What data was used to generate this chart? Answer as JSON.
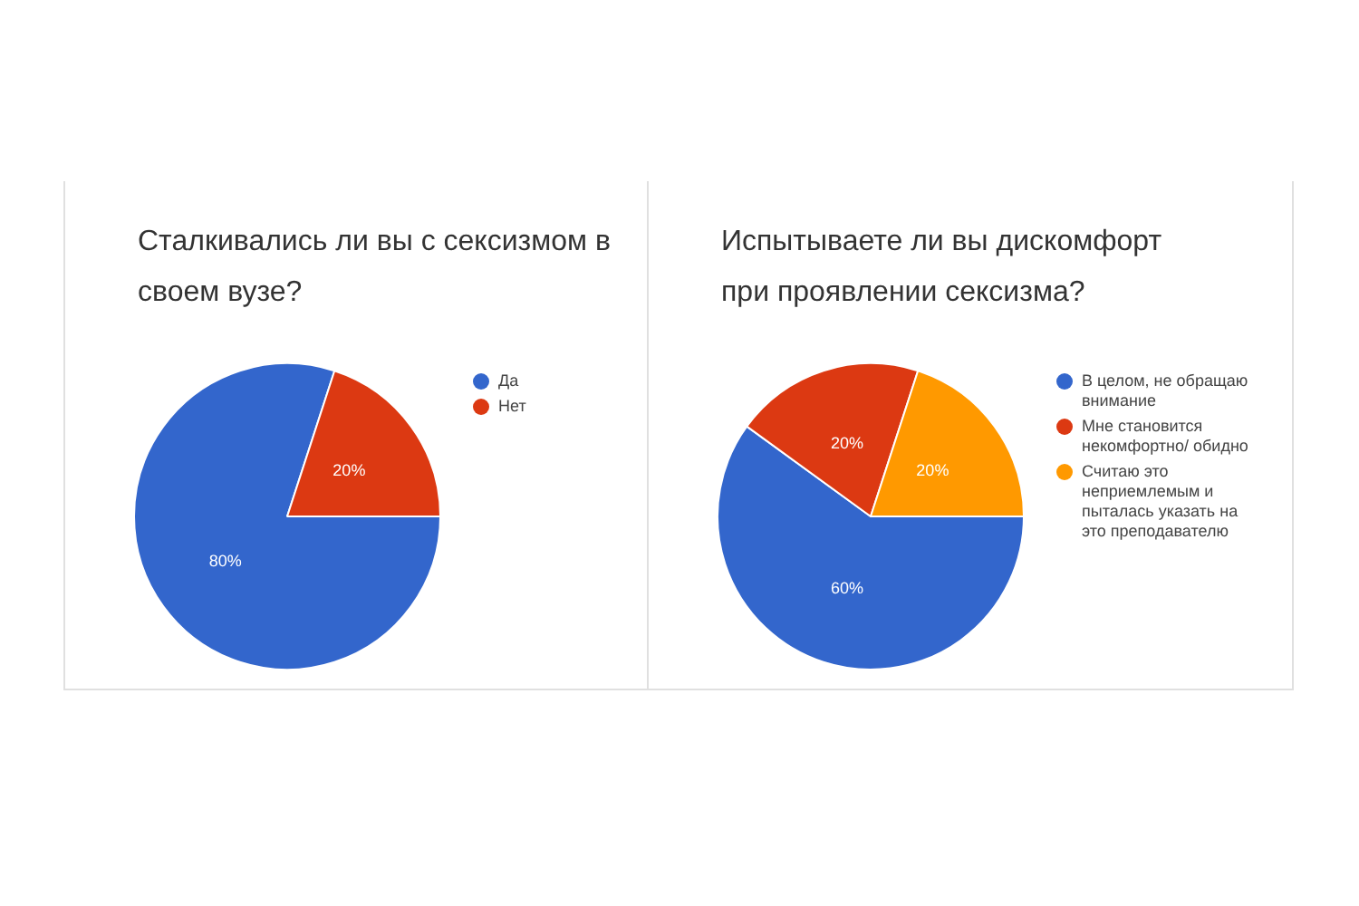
{
  "chart_data": [
    {
      "type": "pie",
      "title": "Сталкивались ли вы с сексизмом в своем вузе?",
      "categories": [
        "Да",
        "Нет"
      ],
      "values": [
        80,
        20
      ],
      "colors": [
        "#3366cc",
        "#dc3912"
      ],
      "value_labels": [
        "80%",
        "20%"
      ],
      "legend": "right"
    },
    {
      "type": "pie",
      "title": "Испытываете ли вы дискомфорт при проявлении сексизма?",
      "categories": [
        "В целом, не обращаю внимание",
        "Мне становится некомфортно/ обидно",
        "Считаю это неприемлемым и пыталась указать на это преподавателю"
      ],
      "values": [
        60,
        20,
        20
      ],
      "colors": [
        "#3366cc",
        "#dc3912",
        "#ff9900"
      ],
      "value_labels": [
        "60%",
        "20%",
        "20%"
      ],
      "legend": "right"
    }
  ]
}
